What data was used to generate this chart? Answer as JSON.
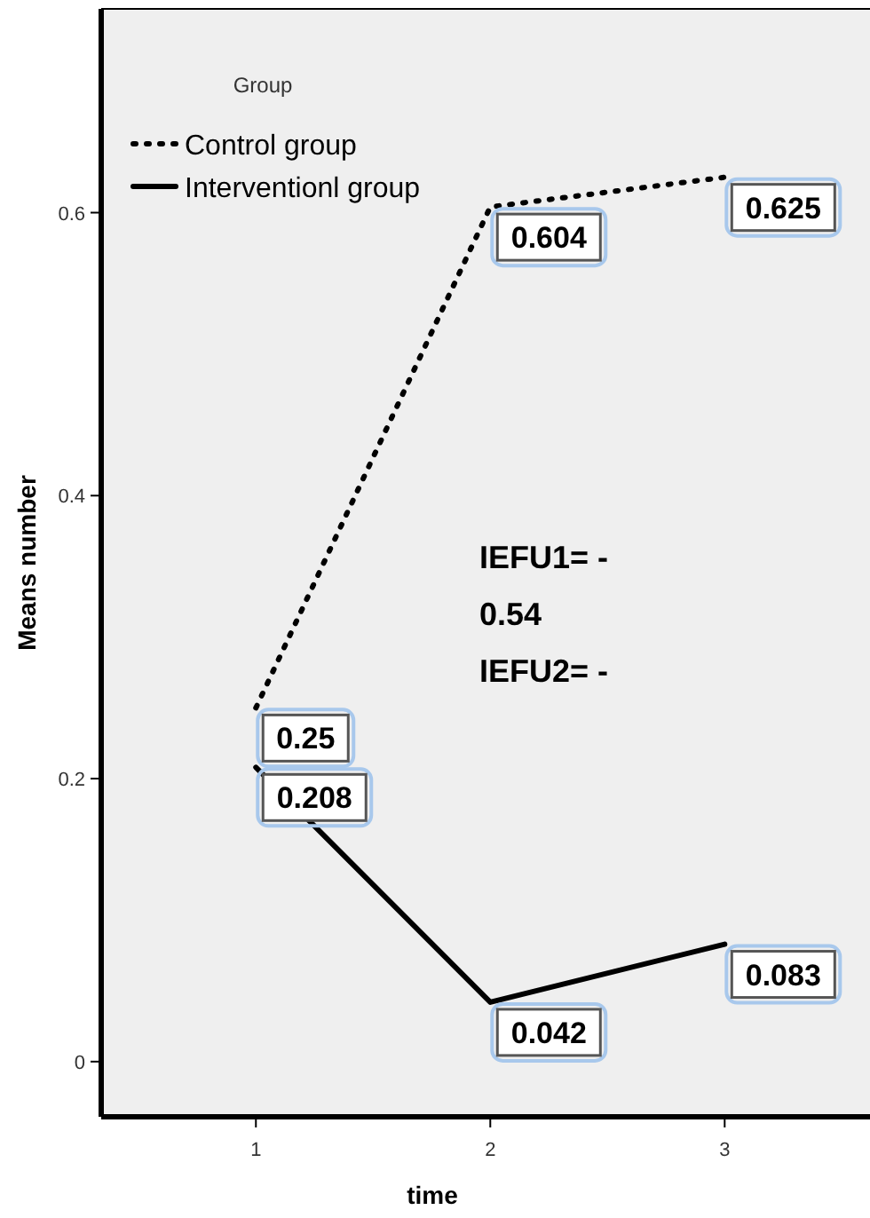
{
  "chart_data": {
    "type": "line",
    "xlabel": "time",
    "ylabel": "Means number",
    "legend_title": "Group",
    "x": [
      1,
      2,
      3
    ],
    "series": [
      {
        "name": "Control group",
        "color": "#000000",
        "values": [
          0.25,
          0.604,
          0.625
        ],
        "line_style": "dotted"
      },
      {
        "name": "Interventionl group",
        "color": "#000000",
        "values": [
          0.208,
          0.042,
          0.083
        ],
        "line_style": "solid"
      }
    ],
    "xlim": [
      0.34,
      3.62
    ],
    "xticks": [
      1,
      2,
      3
    ],
    "ylim": [
      -0.039,
      0.744
    ],
    "yticks": [
      0,
      0.2,
      0.4,
      0.6
    ],
    "data_labels": true,
    "legend": "top left",
    "grid": false,
    "marker": "none",
    "annotations": [
      "IEFU1= -",
      "0.54",
      "IEFU2= -"
    ]
  }
}
